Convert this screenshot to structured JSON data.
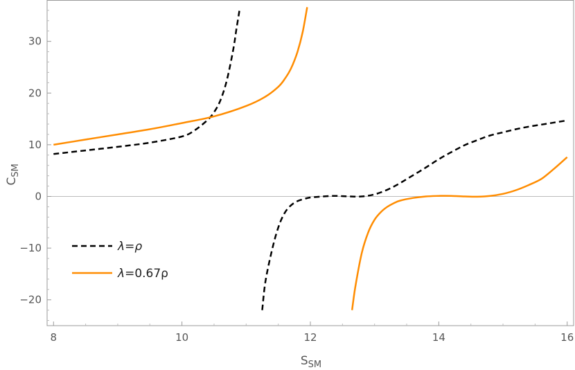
{
  "chart_data": {
    "type": "line",
    "xlabel": "S",
    "xlabel_sub": "SM",
    "ylabel": "C",
    "ylabel_sub": "SM",
    "xlim": [
      7.9,
      16.1
    ],
    "ylim": [
      -25,
      38
    ],
    "xticks": [
      8,
      10,
      12,
      14,
      16
    ],
    "yticks": [
      -20,
      -10,
      0,
      10,
      20,
      30
    ],
    "grid": false,
    "zero_line": true,
    "legend_position": "bottom-left",
    "series": [
      {
        "name": "λ=ρ",
        "name_math": {
          "lhs": "λ",
          "eq": "=",
          "rhs": "ρ"
        },
        "color": "#000000",
        "style": "dashed",
        "segments": [
          [
            [
              8.0,
              8.2
            ],
            [
              8.5,
              8.9
            ],
            [
              9.0,
              9.6
            ],
            [
              9.5,
              10.4
            ],
            [
              10.0,
              11.6
            ],
            [
              10.2,
              12.8
            ],
            [
              10.4,
              14.8
            ],
            [
              10.5,
              16.3
            ],
            [
              10.6,
              18.6
            ],
            [
              10.7,
              22.5
            ],
            [
              10.8,
              28.5
            ],
            [
              10.85,
              32.5
            ],
            [
              10.9,
              36.3
            ]
          ],
          [
            [
              11.25,
              -22.0
            ],
            [
              11.3,
              -16.5
            ],
            [
              11.4,
              -10.5
            ],
            [
              11.5,
              -6.0
            ],
            [
              11.6,
              -3.2
            ],
            [
              11.7,
              -1.7
            ],
            [
              11.8,
              -0.9
            ],
            [
              11.9,
              -0.5
            ],
            [
              12.0,
              -0.2
            ],
            [
              12.2,
              0.0
            ],
            [
              12.4,
              0.1
            ],
            [
              12.6,
              0.0
            ],
            [
              12.8,
              0.0
            ],
            [
              13.0,
              0.4
            ],
            [
              13.2,
              1.3
            ],
            [
              13.4,
              2.6
            ],
            [
              13.6,
              4.1
            ],
            [
              13.8,
              5.6
            ],
            [
              14.0,
              7.2
            ],
            [
              14.2,
              8.6
            ],
            [
              14.4,
              9.9
            ],
            [
              14.6,
              10.9
            ],
            [
              14.8,
              11.8
            ],
            [
              15.0,
              12.4
            ],
            [
              15.2,
              13.0
            ],
            [
              15.4,
              13.5
            ],
            [
              15.6,
              13.9
            ],
            [
              15.8,
              14.3
            ],
            [
              16.0,
              14.7
            ]
          ]
        ]
      },
      {
        "name": "λ=0.67ρ",
        "name_math": {
          "lhs": "λ",
          "eq": "=",
          "rhs": "0.67ρ"
        },
        "color": "#FF8C00",
        "style": "solid",
        "segments": [
          [
            [
              8.0,
              10.0
            ],
            [
              8.5,
              11.0
            ],
            [
              9.0,
              12.0
            ],
            [
              9.5,
              13.0
            ],
            [
              10.0,
              14.2
            ],
            [
              10.5,
              15.5
            ],
            [
              11.0,
              17.5
            ],
            [
              11.3,
              19.3
            ],
            [
              11.5,
              21.2
            ],
            [
              11.6,
              22.7
            ],
            [
              11.7,
              24.8
            ],
            [
              11.8,
              28.0
            ],
            [
              11.88,
              31.8
            ],
            [
              11.95,
              36.6
            ]
          ],
          [
            [
              12.65,
              -22.0
            ],
            [
              12.7,
              -17.5
            ],
            [
              12.8,
              -11.0
            ],
            [
              12.9,
              -7.0
            ],
            [
              13.0,
              -4.5
            ],
            [
              13.1,
              -3.0
            ],
            [
              13.2,
              -2.0
            ],
            [
              13.3,
              -1.3
            ],
            [
              13.4,
              -0.8
            ],
            [
              13.6,
              -0.3
            ],
            [
              13.8,
              0.0
            ],
            [
              14.0,
              0.1
            ],
            [
              14.2,
              0.1
            ],
            [
              14.4,
              0.0
            ],
            [
              14.6,
              -0.05
            ],
            [
              14.8,
              0.1
            ],
            [
              15.0,
              0.5
            ],
            [
              15.2,
              1.2
            ],
            [
              15.4,
              2.2
            ],
            [
              15.6,
              3.4
            ],
            [
              15.8,
              5.4
            ],
            [
              16.0,
              7.6
            ]
          ]
        ]
      }
    ]
  },
  "colors": {
    "frame": "#999999",
    "zero_line": "#bbbbbb",
    "tick_text": "#555555"
  }
}
